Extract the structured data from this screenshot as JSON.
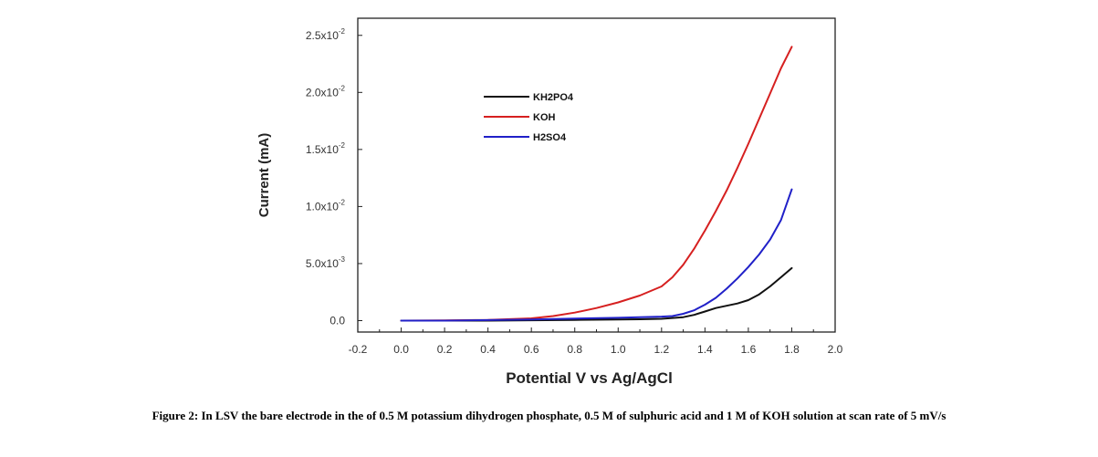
{
  "chart_data": {
    "type": "line",
    "title": "",
    "xlabel": "Potential V vs Ag/AgCl",
    "ylabel": "Current (mA)",
    "xlim": [
      -0.2,
      2.0
    ],
    "ylim": [
      -0.001,
      0.0265
    ],
    "x_ticks": [
      -0.2,
      0.0,
      0.2,
      0.4,
      0.6,
      0.8,
      1.0,
      1.2,
      1.4,
      1.6,
      1.8,
      2.0
    ],
    "x_tick_labels": [
      "-0.2",
      "0.0",
      "0.2",
      "0.4",
      "0.6",
      "0.8",
      "1.0",
      "1.2",
      "1.4",
      "1.6",
      "1.8",
      "2.0"
    ],
    "y_ticks": [
      0,
      0.005,
      0.01,
      0.015,
      0.02,
      0.025
    ],
    "y_tick_labels": [
      {
        "mantissa": "0.0",
        "exp": ""
      },
      {
        "mantissa": "5.0x10",
        "exp": "-3"
      },
      {
        "mantissa": "1.0x10",
        "exp": "-2"
      },
      {
        "mantissa": "1.5x10",
        "exp": "-2"
      },
      {
        "mantissa": "2.0x10",
        "exp": "-2"
      },
      {
        "mantissa": "2.5x10",
        "exp": "-2"
      }
    ],
    "grid": false,
    "legend_position": "top-left",
    "series": [
      {
        "name": "KH2PO4",
        "color": "#111111",
        "x": [
          0.0,
          0.2,
          0.4,
          0.6,
          0.8,
          1.0,
          1.1,
          1.2,
          1.3,
          1.35,
          1.4,
          1.45,
          1.5,
          1.55,
          1.6,
          1.65,
          1.7,
          1.75,
          1.8
        ],
        "y": [
          0.0,
          0.0,
          0.0,
          3e-05,
          6e-05,
          0.0001,
          0.00012,
          0.00016,
          0.0003,
          0.0005,
          0.0008,
          0.0011,
          0.0013,
          0.0015,
          0.0018,
          0.0023,
          0.003,
          0.0038,
          0.0046
        ]
      },
      {
        "name": "KOH",
        "color": "#d62020",
        "x": [
          0.0,
          0.2,
          0.4,
          0.6,
          0.7,
          0.8,
          0.9,
          1.0,
          1.1,
          1.2,
          1.25,
          1.3,
          1.35,
          1.4,
          1.45,
          1.5,
          1.55,
          1.6,
          1.65,
          1.7,
          1.75,
          1.8
        ],
        "y": [
          0.0,
          2e-05,
          6e-05,
          0.0002,
          0.0004,
          0.0007,
          0.0011,
          0.0016,
          0.0022,
          0.003,
          0.0038,
          0.0049,
          0.0063,
          0.0079,
          0.0096,
          0.0114,
          0.0134,
          0.0155,
          0.0177,
          0.0199,
          0.0221,
          0.024
        ]
      },
      {
        "name": "H2SO4",
        "color": "#2020c8",
        "x": [
          0.0,
          0.2,
          0.4,
          0.6,
          0.8,
          1.0,
          1.1,
          1.2,
          1.25,
          1.3,
          1.35,
          1.4,
          1.45,
          1.5,
          1.55,
          1.6,
          1.65,
          1.7,
          1.75,
          1.8
        ],
        "y": [
          0.0,
          0.0,
          5e-05,
          0.0001,
          0.00018,
          0.00025,
          0.0003,
          0.00035,
          0.0004,
          0.0006,
          0.0009,
          0.0014,
          0.002,
          0.0028,
          0.0037,
          0.0047,
          0.0058,
          0.0071,
          0.0088,
          0.0115
        ]
      }
    ]
  },
  "caption": {
    "text": "Figure 2: In LSV the bare electrode in the of 0.5 M potassium dihydrogen phosphate, 0.5 M of sulphuric acid and 1 M of KOH solution at scan rate of 5 mV/s"
  }
}
